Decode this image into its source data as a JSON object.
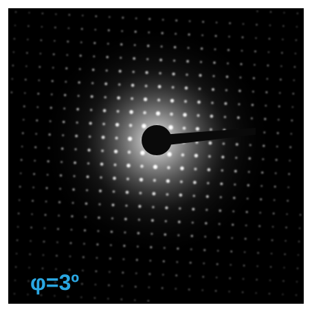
{
  "label": "φ=3º"
}
